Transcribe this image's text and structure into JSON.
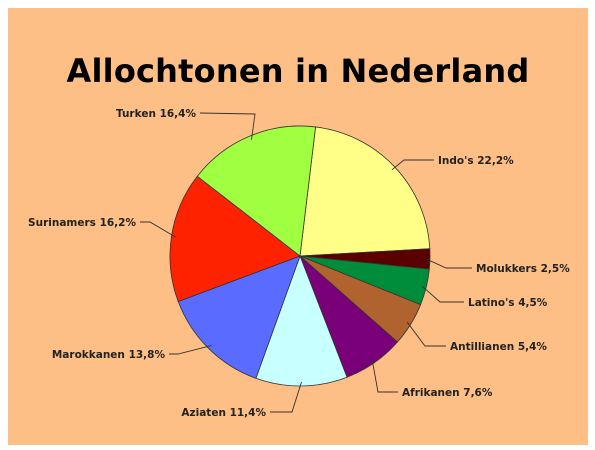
{
  "chart_data": {
    "type": "pie",
    "title": "Allochtonen in Nederland",
    "background": "#fdbf85",
    "slices": [
      {
        "name": "Indo's",
        "value": 22.2,
        "label": "Indo's 22,2%",
        "color": "#ffff88"
      },
      {
        "name": "Molukkers",
        "value": 2.5,
        "label": "Molukkers 2,5%",
        "color": "#5a0000"
      },
      {
        "name": "Latino's",
        "value": 4.5,
        "label": "Latino's 4,5%",
        "color": "#008d3b"
      },
      {
        "name": "Antillianen",
        "value": 5.4,
        "label": "Antillianen 5,4%",
        "color": "#b0622f"
      },
      {
        "name": "Afrikanen",
        "value": 7.6,
        "label": "Afrikanen 7,6%",
        "color": "#7a007a"
      },
      {
        "name": "Aziaten",
        "value": 11.4,
        "label": "Aziaten 11,4%",
        "color": "#c8ffff"
      },
      {
        "name": "Marokkanen",
        "value": 13.8,
        "label": "Marokkanen 13,8%",
        "color": "#5a6bff"
      },
      {
        "name": "Surinamers",
        "value": 16.2,
        "label": "Surinamers 16,2%",
        "color": "#ff2200"
      },
      {
        "name": "Turken",
        "value": 16.4,
        "label": "Turken 16,4%",
        "color": "#a0ff40"
      }
    ]
  }
}
